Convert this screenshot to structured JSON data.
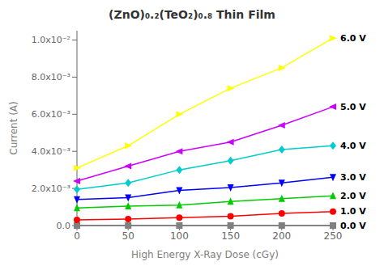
{
  "chart_data": {
    "type": "line",
    "title": "(ZnO)₀.₂(TeO₂)₀.₈ Thin Film",
    "xlabel": "High Energy X-Ray Dose (cGy)",
    "ylabel": "Current (A)",
    "x": [
      0,
      50,
      100,
      150,
      200,
      250
    ],
    "series": [
      {
        "name": "0.0 V",
        "color": "#808080",
        "marker": "square",
        "values": [
          0.0,
          0.0,
          0.0,
          0.0,
          0.0,
          0.0
        ]
      },
      {
        "name": "1.0 V",
        "color": "#ff0000",
        "marker": "circle",
        "values": [
          0.0003,
          0.00035,
          0.00042,
          0.0005,
          0.00065,
          0.00075
        ]
      },
      {
        "name": "2.0 V",
        "color": "#00cc00",
        "marker": "triangle-up",
        "values": [
          0.00095,
          0.00105,
          0.0011,
          0.0013,
          0.00145,
          0.0016
        ]
      },
      {
        "name": "3.0 V",
        "color": "#0000ff",
        "marker": "triangle-down",
        "values": [
          0.0014,
          0.0015,
          0.0019,
          0.00205,
          0.0023,
          0.0026
        ]
      },
      {
        "name": "4.0 V",
        "color": "#00cccc",
        "marker": "diamond",
        "values": [
          0.00195,
          0.0023,
          0.003,
          0.0035,
          0.0041,
          0.0043
        ]
      },
      {
        "name": "5.0 V",
        "color": "#cc00ff",
        "marker": "triangle-left",
        "values": [
          0.0024,
          0.0032,
          0.004,
          0.0045,
          0.0054,
          0.0064
        ]
      },
      {
        "name": "6.0 V",
        "color": "#ffff00",
        "marker": "triangle-right",
        "values": [
          0.0031,
          0.0043,
          0.006,
          0.0074,
          0.0085,
          0.0101
        ]
      }
    ],
    "xlim": [
      0,
      250
    ],
    "ylim": [
      0.0,
      0.0105
    ],
    "xticks": [
      0,
      50,
      100,
      150,
      200,
      250
    ],
    "yticks": [
      {
        "value": 0.0,
        "label": "0.0"
      },
      {
        "value": 0.002,
        "label": "2.0x10⁻³"
      },
      {
        "value": 0.004,
        "label": "4.0x10⁻³"
      },
      {
        "value": 0.006,
        "label": "6.0x10⁻³"
      },
      {
        "value": 0.008,
        "label": "8.0x10⁻³"
      },
      {
        "value": 0.01,
        "label": "1.0x10⁻²"
      }
    ],
    "grid": false
  }
}
